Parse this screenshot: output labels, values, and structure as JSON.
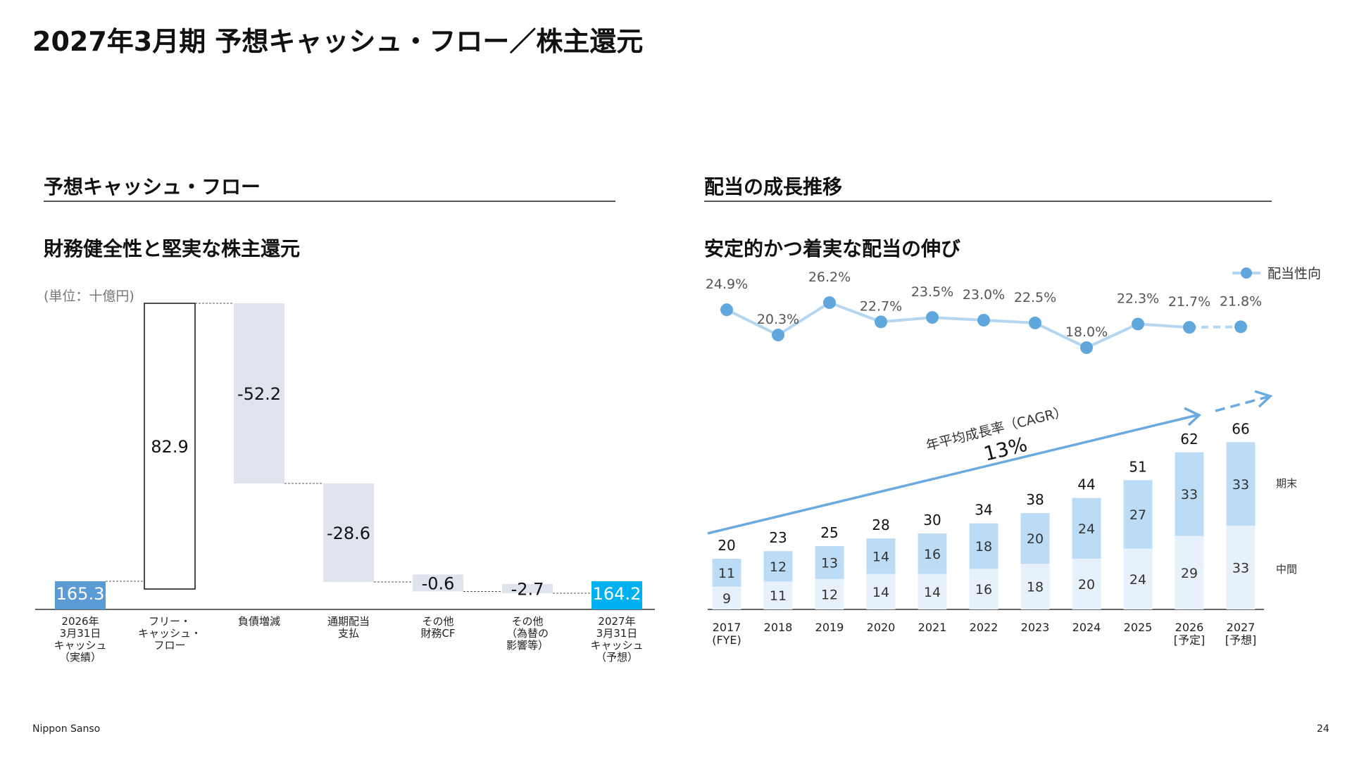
{
  "page_title": "2027年3月期 予想キャッシュ・フロー／株主還元",
  "left": {
    "section_title": "予想キャッシュ・フロー",
    "subtitle": "財務健全性と堅実な株主還元",
    "unit": "(単位：十億円)"
  },
  "right": {
    "section_title": "配当の成長推移",
    "subtitle": "安定的かつ着実な配当の伸び",
    "cagr_label": "年平均成長率（CAGR）",
    "cagr_value": "13%",
    "legend_payout": "配当性向",
    "label_period_end": "期末",
    "label_interim": "中間"
  },
  "footer": {
    "company": "Nippon Sanso",
    "page_number": "24"
  },
  "colors": {
    "cash_blue": "#5b9bd5",
    "cash_cyan": "#00b0f0",
    "waterfall_grey": "#dfe3ee",
    "dividend_light": "#e6f1fb",
    "dividend_mid": "#bcdcf6",
    "payout_line": "#b4d6f1",
    "payout_dot": "#5fa7dd",
    "cagr_arrow": "#6aaade"
  },
  "chart_data": [
    {
      "type": "waterfall",
      "categories": [
        [
          "2026年",
          "3月31日",
          "キャッシュ",
          "（実績）"
        ],
        [
          "フリー・",
          "キャッシュ・",
          "フロー"
        ],
        [
          "負債増減"
        ],
        [
          "通期配当",
          "支払"
        ],
        [
          "その他",
          "財務CF"
        ],
        [
          "その他",
          "（為替の",
          "影響等）"
        ],
        [
          "2027年",
          "3月31日",
          "キャッシュ",
          "（予想）"
        ]
      ],
      "values": [
        165.3,
        82.9,
        -52.2,
        -28.6,
        -0.6,
        -2.7,
        164.2
      ],
      "labels": [
        "165.3",
        "82.9",
        "-52.2",
        "-28.6",
        "-0.6",
        "-2.7",
        "164.2"
      ],
      "kinds": [
        "total",
        "increase",
        "decrease",
        "decrease",
        "decrease",
        "decrease",
        "total"
      ]
    },
    {
      "type": "bar",
      "stacked": true,
      "categories": [
        [
          "2017",
          "(FYE)"
        ],
        [
          "2018"
        ],
        [
          "2019"
        ],
        [
          "2020"
        ],
        [
          "2021"
        ],
        [
          "2022"
        ],
        [
          "2023"
        ],
        [
          "2024"
        ],
        [
          "2025"
        ],
        [
          "2026",
          "[予定]"
        ],
        [
          "2027",
          "[予想]"
        ]
      ],
      "series": [
        {
          "name": "中間",
          "values": [
            9,
            11,
            12,
            14,
            14,
            16,
            18,
            20,
            24,
            29,
            33
          ]
        },
        {
          "name": "期末",
          "values": [
            11,
            12,
            13,
            14,
            16,
            18,
            20,
            24,
            27,
            33,
            33
          ]
        }
      ],
      "totals": [
        20,
        23,
        25,
        28,
        30,
        34,
        38,
        44,
        51,
        62,
        66
      ]
    },
    {
      "type": "line",
      "categories": [
        "2017",
        "2018",
        "2019",
        "2020",
        "2021",
        "2022",
        "2023",
        "2024",
        "2025",
        "2026",
        "2027"
      ],
      "series": [
        {
          "name": "配当性向",
          "values": [
            24.9,
            20.3,
            26.2,
            22.7,
            23.5,
            23.0,
            22.5,
            18.0,
            22.3,
            21.7,
            21.8
          ]
        }
      ],
      "labels": [
        "24.9%",
        "20.3%",
        "26.2%",
        "22.7%",
        "23.5%",
        "23.0%",
        "22.5%",
        "18.0%",
        "22.3%",
        "21.7%",
        "21.8%"
      ]
    }
  ]
}
